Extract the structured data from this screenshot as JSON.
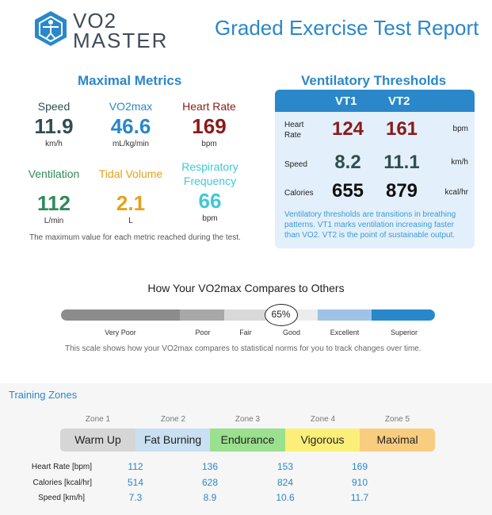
{
  "header": {
    "logo_line1": "VO2",
    "logo_line2": "MASTER",
    "title": "Graded Exercise Test Report"
  },
  "maximal": {
    "title": "Maximal Metrics",
    "metrics": [
      {
        "label": "Speed",
        "value": "11.9",
        "unit": "km/h",
        "color": "#2f4f4f"
      },
      {
        "label": "VO2max",
        "value": "46.6",
        "unit": "mL/kg/min",
        "color": "#2a87c9"
      },
      {
        "label": "Heart Rate",
        "value": "169",
        "unit": "bpm",
        "color": "#8b1a1a"
      },
      {
        "label": "Ventilation",
        "value": "112",
        "unit": "L/min",
        "color": "#2e8b57"
      },
      {
        "label": "Tidal Volume",
        "value": "2.1",
        "unit": "L",
        "color": "#e3a21a"
      },
      {
        "label": "Respiratory Frequency",
        "value": "66",
        "unit": "bpm",
        "color": "#3ec9d6"
      }
    ],
    "note": "The maximum value for each metric reached during the test."
  },
  "ventilatory": {
    "title": "Ventilatory Thresholds",
    "col1": "VT1",
    "col2": "VT2",
    "rows": [
      {
        "label": "Heart Rate",
        "vt1": "124",
        "vt2": "161",
        "unit": "bpm",
        "color": "#8b1a1a"
      },
      {
        "label": "Speed",
        "vt1": "8.2",
        "vt2": "11.1",
        "unit": "km/h",
        "color": "#2f4f4f"
      },
      {
        "label": "Calories",
        "vt1": "655",
        "vt2": "879",
        "unit": "kcal/hr",
        "color": "#111111"
      }
    ],
    "note": "Ventilatory thresholds are transitions in breathing patterns. VT1 marks ventilation increasing faster than VO2. VT2 is the point of sustainable output."
  },
  "compare": {
    "title": "How Your VO2max Compares to Others",
    "percentile": "65%",
    "percentile_value": 0.65,
    "categories": [
      "Very Poor",
      "Poor",
      "Fair",
      "Good",
      "Excellent",
      "Superior"
    ],
    "colors": [
      "#8c8c8c",
      "#a8a8a8",
      "#d9d9d9",
      "#ececec",
      "#9fc3e6",
      "#2a87c9"
    ],
    "note": "This scale shows how your VO2max compares to statistical norms for you to track changes over time."
  },
  "zones": {
    "title": "Training Zones",
    "zones": [
      {
        "num": "Zone 1",
        "name": "Warm Up",
        "color": "#d6d6d6"
      },
      {
        "num": "Zone 2",
        "name": "Fat Burning",
        "color": "#c9dff2"
      },
      {
        "num": "Zone 3",
        "name": "Endurance",
        "color": "#9be08e"
      },
      {
        "num": "Zone 4",
        "name": "Vigorous",
        "color": "#fbef7a"
      },
      {
        "num": "Zone 5",
        "name": "Maximal",
        "color": "#f9cd80"
      }
    ],
    "rows": [
      {
        "label": "Heart Rate [bpm]",
        "values": [
          "112",
          "136",
          "153",
          "169"
        ]
      },
      {
        "label": "Calories [kcal/hr]",
        "values": [
          "514",
          "628",
          "824",
          "910"
        ]
      },
      {
        "label": "Speed [km/h]",
        "values": [
          "7.3",
          "8.9",
          "10.6",
          "11.7"
        ]
      }
    ]
  }
}
